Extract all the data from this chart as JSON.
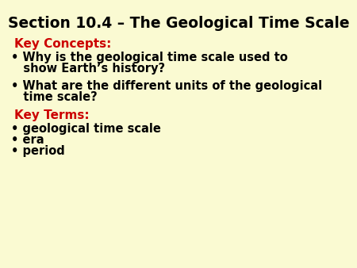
{
  "title": "Section 10.4 – The Geological Time Scale",
  "title_fontsize": 13.5,
  "title_color": "#000000",
  "title_weight": "bold",
  "background_color": "#FAFAD2",
  "red_color": "#CC0000",
  "black_color": "#000000",
  "key_concepts_label": "Key Concepts:",
  "key_terms_label": "Key Terms:",
  "concept1_line1": "• Why is the geological time scale used to",
  "concept1_line2": "   show Earth’s history?",
  "concept2_line1": "• What are the different units of the geological",
  "concept2_line2": "   time scale?",
  "term1": "• geological time scale",
  "term2": "• era",
  "term3": "• period",
  "body_fontsize": 10.5,
  "header_fontsize": 11
}
